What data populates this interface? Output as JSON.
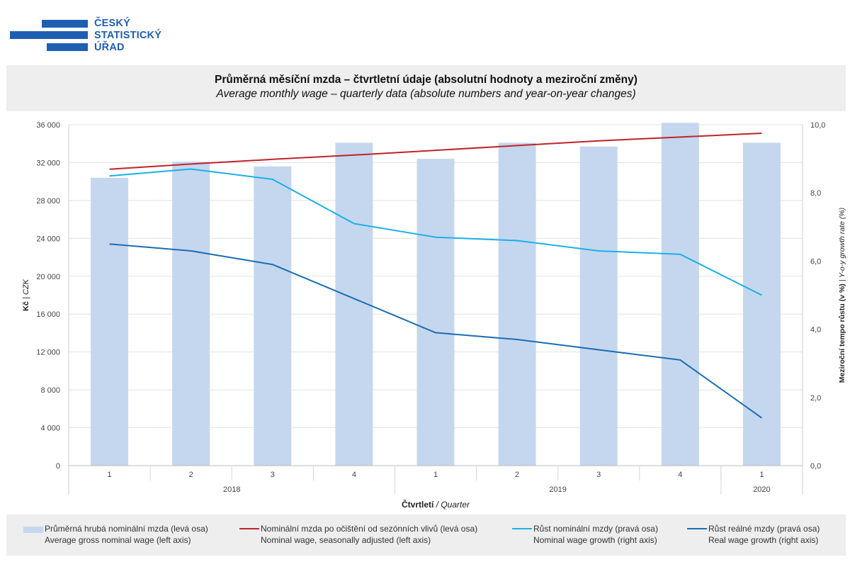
{
  "logo": {
    "lines": [
      "ČESKÝ",
      "STATISTICKÝ",
      "ÚŘAD"
    ],
    "color": "#1f5fb2"
  },
  "header": {
    "title_cs": "Průměrná měsíční mzda – čtvrtletní údaje (absolutní hodnoty a meziroční změny)",
    "title_en": "Average monthly wage – quarterly data (absolute numbers and year-on-year changes)"
  },
  "legend": {
    "bar": {
      "cs": "Průměrná hrubá nominální mzda (levá osa)",
      "en": "Average gross nominal wage (left axis)"
    },
    "sa": {
      "cs": "Nominální mzda po očištění od sezónních vlivů (levá osa)",
      "en": "Nominal wage, seasonally adjusted (left axis)"
    },
    "nominal": {
      "cs": "Růst nominální mzdy (pravá osa)",
      "en": "Nominal wage growth (right axis)"
    },
    "real": {
      "cs": "Růst reálné mzdy (pravá osa)",
      "en": "Real wage growth (right axis)"
    }
  },
  "chart_data": {
    "type": "bar",
    "categories": [
      "1",
      "2",
      "3",
      "4",
      "1",
      "2",
      "3",
      "4",
      "1"
    ],
    "years": [
      {
        "label": "2018",
        "quarters": 4
      },
      {
        "label": "2019",
        "quarters": 4
      },
      {
        "label": "2020",
        "quarters": 1
      }
    ],
    "xlabel_bold": "Čtvrtletí",
    "xlabel_rest": " / Quarter",
    "ylabel_left_bold": "Kč",
    "ylabel_left_rest": " | CZK",
    "ylabel_right_bold": "Meziroční tempo růstu (v %)",
    "ylabel_right_rest": " | Y-o-y growth rate (%)",
    "ylim_left": [
      0,
      36000
    ],
    "yticks_left": [
      "0",
      "4 000",
      "8 000",
      "12 000",
      "16 000",
      "20 000",
      "24 000",
      "28 000",
      "32 000",
      "36 000"
    ],
    "ylim_right": [
      0,
      10
    ],
    "yticks_right": [
      "0,0",
      "2,0",
      "4,0",
      "6,0",
      "8,0",
      "10,0"
    ],
    "grid": true,
    "legend_position": "bottom",
    "series": [
      {
        "name": "Průměrná hrubá nominální mzda (levá osa)",
        "type": "bar",
        "axis": "left",
        "color": "#c5d7ef",
        "values": [
          30400,
          32100,
          31600,
          34100,
          32400,
          34100,
          33700,
          36200,
          34100
        ]
      },
      {
        "name": "Nominální mzda po očištění od sezónních vlivů (levá osa)",
        "type": "line",
        "axis": "left",
        "color": "#c0232b",
        "values": [
          31300,
          31850,
          32350,
          32800,
          33300,
          33800,
          34300,
          34700,
          35100
        ]
      },
      {
        "name": "Růst nominální mzdy (pravá osa)",
        "type": "line",
        "axis": "right",
        "color": "#1bb0e8",
        "values": [
          8.5,
          8.7,
          8.4,
          7.1,
          6.7,
          6.6,
          6.3,
          6.2,
          5.0
        ]
      },
      {
        "name": "Růst reálné mzdy (pravá osa)",
        "type": "line",
        "axis": "right",
        "color": "#1a6db4",
        "values": [
          6.5,
          6.3,
          5.9,
          4.9,
          3.9,
          3.7,
          3.4,
          3.1,
          1.4
        ]
      }
    ]
  }
}
